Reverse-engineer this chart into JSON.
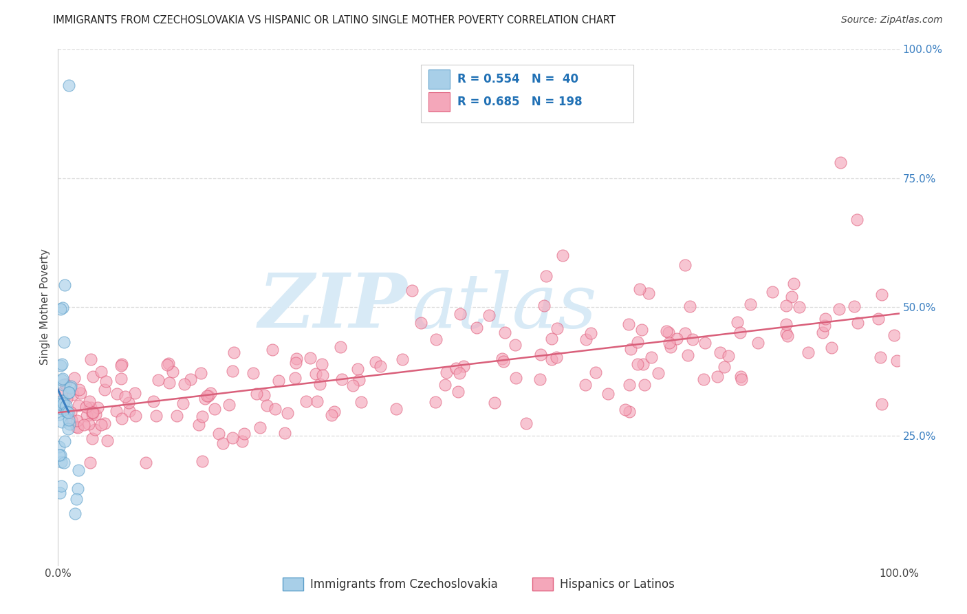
{
  "title": "IMMIGRANTS FROM CZECHOSLOVAKIA VS HISPANIC OR LATINO SINGLE MOTHER POVERTY CORRELATION CHART",
  "source": "Source: ZipAtlas.com",
  "ylabel": "Single Mother Poverty",
  "color_blue_fill": "#a8cfe8",
  "color_blue_edge": "#5b9ec9",
  "color_blue_line": "#3a7fc1",
  "color_blue_dash": "#9cc4e8",
  "color_pink_fill": "#f4a7ba",
  "color_pink_edge": "#e0607e",
  "color_pink_line": "#d95f7a",
  "color_legend_text": "#2171b5",
  "color_ylabel": "#444444",
  "color_title": "#222222",
  "color_source": "#444444",
  "color_ytick": "#3a7fc1",
  "color_xtick": "#444444",
  "watermark_zip": "ZIP",
  "watermark_atlas": "atlas",
  "watermark_color": "#d8eaf6",
  "background_color": "#ffffff",
  "grid_color": "#d8d8d8",
  "legend_box_color": "#ffffff",
  "legend_box_edge": "#cccccc"
}
